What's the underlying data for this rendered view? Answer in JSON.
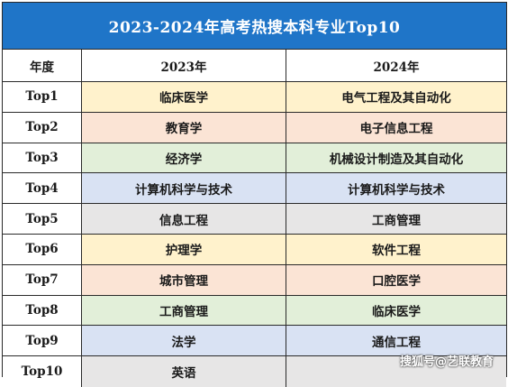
{
  "title": "2023-2024年高考热搜本科专业Top10",
  "headers": [
    "年度",
    "2023年",
    "2024年"
  ],
  "rows": [
    {
      "rank": "Top1",
      "y2023": "临床医学",
      "y2024": "电气工程及其自动化",
      "color": "#fff2cc"
    },
    {
      "rank": "Top2",
      "y2023": "教育学",
      "y2024": "电子信息工程",
      "color": "#fbe4d5"
    },
    {
      "rank": "Top3",
      "y2023": "经济学",
      "y2024": "机械设计制造及其自动化",
      "color": "#e2efd9"
    },
    {
      "rank": "Top4",
      "y2023": "计算机科学与技术",
      "y2024": "计算机科学与技术",
      "color": "#d9e2f3"
    },
    {
      "rank": "Top5",
      "y2023": "信息工程",
      "y2024": "工商管理",
      "color": "#e7e6e6"
    },
    {
      "rank": "Top6",
      "y2023": "护理学",
      "y2024": "软件工程",
      "color": "#fff2cc"
    },
    {
      "rank": "Top7",
      "y2023": "城市管理",
      "y2024": "口腔医学",
      "color": "#fbe4d5"
    },
    {
      "rank": "Top8",
      "y2023": "工商管理",
      "y2024": "临床医学",
      "color": "#e2efd9"
    },
    {
      "rank": "Top9",
      "y2023": "法学",
      "y2024": "通信工程",
      "color": "#d9e2f3"
    },
    {
      "rank": "Top10",
      "y2023": "英语",
      "y2024": "",
      "color": "#e7e6e6"
    }
  ],
  "watermark": "搜狐号@艺联教育",
  "colors": {
    "title_bg": "#1f75c8",
    "title_text": "#ffffff",
    "border": "#2a2a2a"
  }
}
